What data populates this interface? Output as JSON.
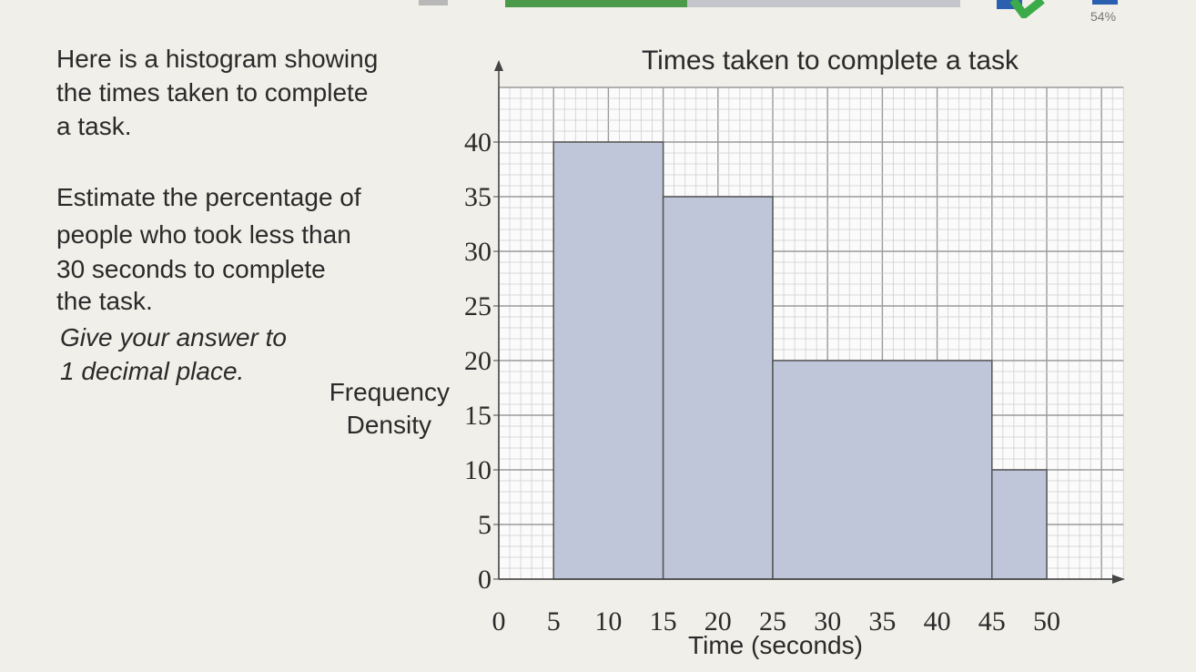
{
  "question": {
    "line1": "Here is a histogram showing",
    "line2": "the times taken to complete",
    "line3": "a task.",
    "line4": "Estimate the percentage of",
    "line5": "people who took less than",
    "line6": "30 seconds to complete",
    "line7": "the task.",
    "line8": "Give your answer to",
    "line9": "1 decimal place."
  },
  "header": {
    "progress_percent": 40,
    "score_label": "54%",
    "accent": "#4a9a4a"
  },
  "chart_data": {
    "type": "bar",
    "title": "Times taken to complete a task",
    "xlabel": "Time (seconds)",
    "ylabel_line1": "Frequency",
    "ylabel_line2": "Density",
    "xlim": [
      0,
      57
    ],
    "ylim": [
      0,
      45
    ],
    "x_ticks": [
      0,
      5,
      10,
      15,
      20,
      25,
      30,
      35,
      40,
      45,
      50
    ],
    "y_ticks": [
      0,
      5,
      10,
      15,
      20,
      25,
      30,
      35,
      40
    ],
    "grid": true,
    "bins": [
      {
        "from": 5,
        "to": 15,
        "density": 40
      },
      {
        "from": 15,
        "to": 25,
        "density": 35
      },
      {
        "from": 25,
        "to": 45,
        "density": 20
      },
      {
        "from": 45,
        "to": 50,
        "density": 10
      }
    ],
    "bar_color": "#bfc6d9"
  }
}
